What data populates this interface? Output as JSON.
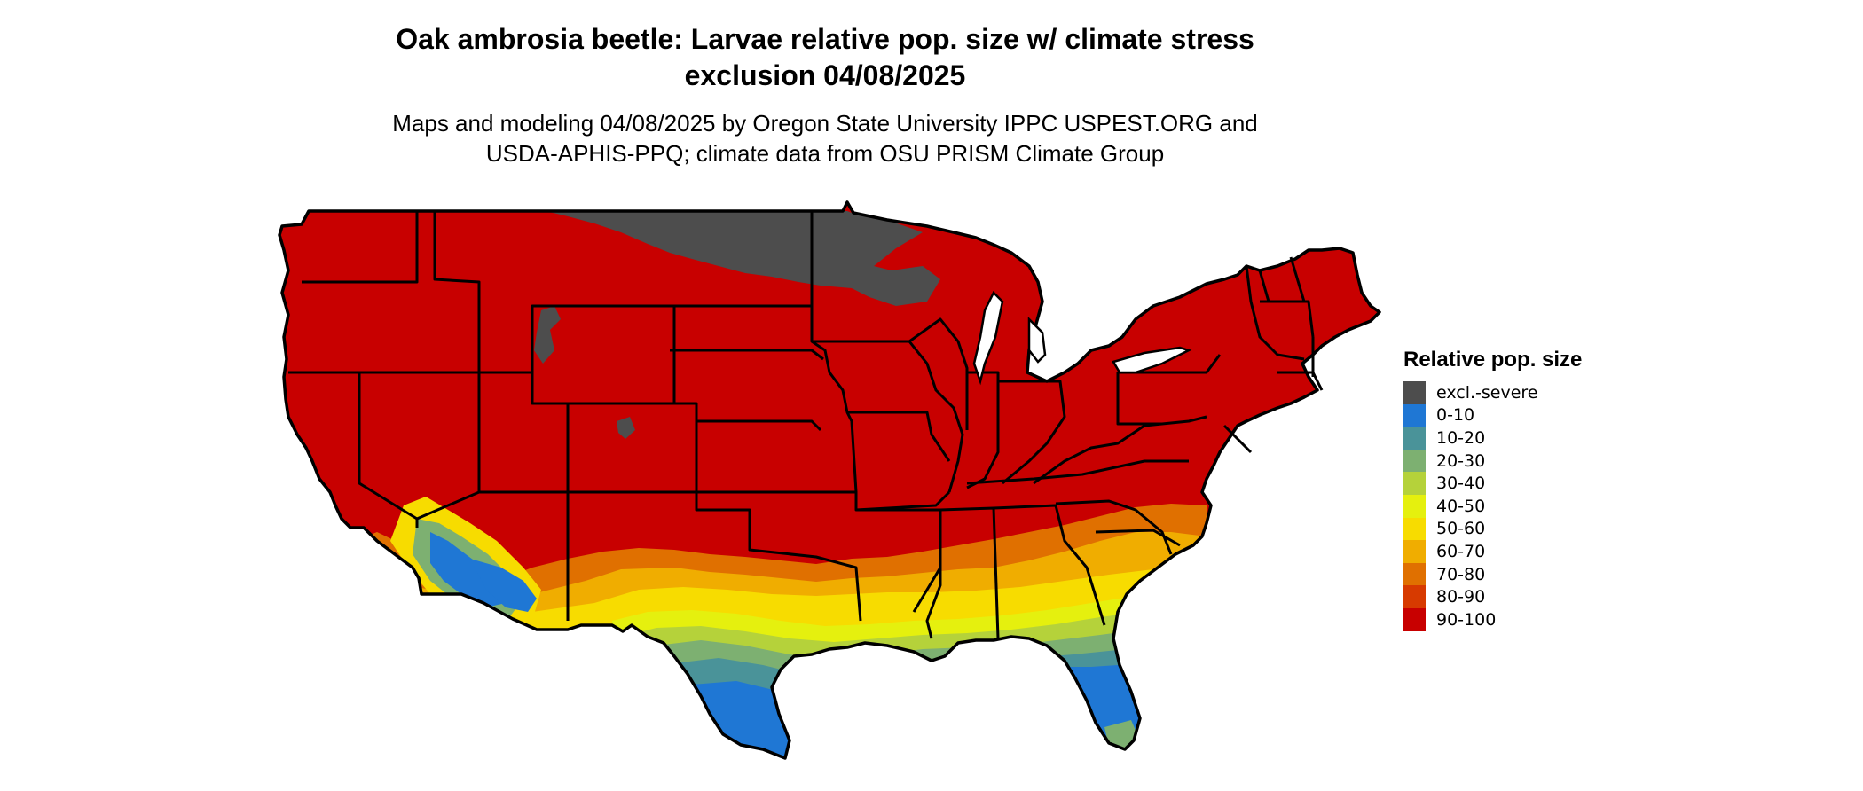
{
  "title_line1": "Oak ambrosia beetle: Larvae relative pop. size w/ climate stress",
  "title_line2": "exclusion 04/08/2025",
  "subtitle_line1": "Maps and modeling 04/08/2025 by Oregon State University IPPC USPEST.ORG and",
  "subtitle_line2": "USDA-APHIS-PPQ; climate data from OSU PRISM Climate Group",
  "legend": {
    "title": "Relative pop. size",
    "items": [
      {
        "label": "excl.-severe",
        "color": "#4d4d4d"
      },
      {
        "label": "0-10",
        "color": "#1f77d4"
      },
      {
        "label": "10-20",
        "color": "#4a9399"
      },
      {
        "label": "20-30",
        "color": "#7db071"
      },
      {
        "label": "30-40",
        "color": "#b5d23a"
      },
      {
        "label": "40-50",
        "color": "#e5f00e"
      },
      {
        "label": "50-60",
        "color": "#f7dc00"
      },
      {
        "label": "60-70",
        "color": "#f0ad00"
      },
      {
        "label": "70-80",
        "color": "#e07000"
      },
      {
        "label": "80-90",
        "color": "#d73a00"
      },
      {
        "label": "90-100",
        "color": "#c80000"
      }
    ]
  },
  "colors": {
    "excl": "#4d4d4d",
    "c0_10": "#1f77d4",
    "c10_20": "#4a9399",
    "c20_30": "#7db071",
    "c30_40": "#b5d23a",
    "c40_50": "#e5f00e",
    "c50_60": "#f7dc00",
    "c60_70": "#f0ad00",
    "c70_80": "#e07000",
    "c80_90": "#d73a00",
    "c90_100": "#c80000",
    "border": "#000000"
  }
}
